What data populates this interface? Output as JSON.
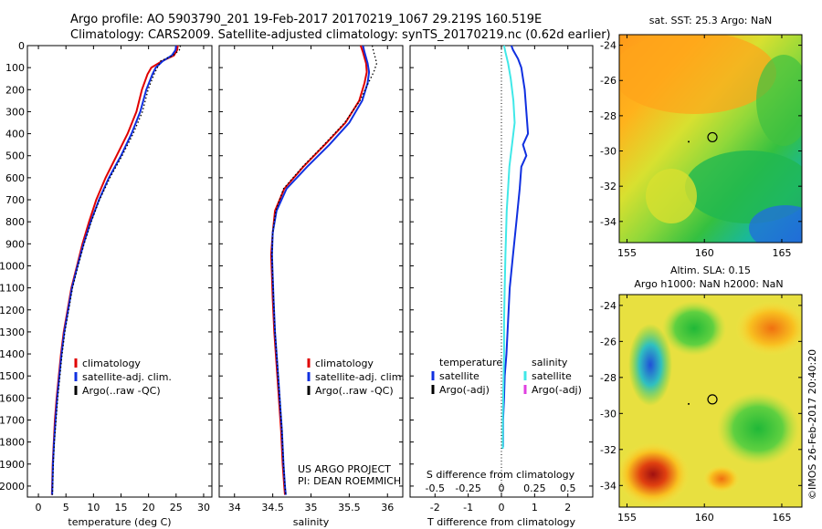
{
  "header": {
    "line1": "Argo profile: AO 5903790_201 19-Feb-2017 20170219_1067 29.219S 160.519E",
    "line2": "Climatology: CARS2009. Satellite-adjusted climatology: synTS_20170219.nc (0.62d earlier)"
  },
  "colors": {
    "clim": "#e00000",
    "sat": "#1030e0",
    "argo": "#000000",
    "sat_s": "#40e8e8",
    "argo_s": "#e040e0"
  },
  "depth_axis": {
    "ylim": [
      0,
      2050
    ],
    "ticks": [
      0,
      100,
      200,
      300,
      400,
      500,
      600,
      700,
      800,
      900,
      1000,
      1100,
      1200,
      1300,
      1400,
      1500,
      1600,
      1700,
      1800,
      1900,
      2000
    ]
  },
  "chart_data": [
    {
      "id": "temperature",
      "type": "line",
      "xlabel": "temperature (deg C)",
      "xlim": [
        -2,
        31.5
      ],
      "xticks": [
        0,
        5,
        10,
        15,
        20,
        25,
        30
      ],
      "legend": [
        "climatology",
        "satellite-adj. clim.",
        "Argo(..raw -QC)"
      ],
      "series": [
        {
          "name": "climatology",
          "color": "clim",
          "style": "solid",
          "x": [
            25.3,
            25.2,
            24.6,
            22.5,
            20.5,
            19.8,
            18.8,
            17.8,
            16.2,
            14.2,
            12.2,
            10.5,
            9.2,
            8.0,
            7.0,
            6.0,
            5.3,
            4.6,
            4.1,
            3.7,
            3.3,
            3.0,
            2.8,
            2.6,
            2.5,
            2.45
          ],
          "depth": [
            0,
            20,
            45,
            70,
            100,
            130,
            200,
            300,
            400,
            500,
            600,
            700,
            800,
            900,
            1000,
            1100,
            1200,
            1300,
            1400,
            1500,
            1600,
            1700,
            1800,
            1900,
            2000,
            2040
          ]
        },
        {
          "name": "satellite-adj. clim.",
          "color": "sat",
          "style": "solid",
          "x": [
            25.0,
            24.9,
            24.2,
            22.6,
            21.3,
            20.7,
            19.6,
            18.5,
            16.9,
            15.0,
            12.8,
            11.0,
            9.5,
            8.2,
            7.1,
            6.1,
            5.4,
            4.7,
            4.2,
            3.8,
            3.4,
            3.1,
            2.85,
            2.65,
            2.55,
            2.5
          ],
          "depth": [
            0,
            20,
            45,
            70,
            100,
            130,
            200,
            300,
            400,
            500,
            600,
            700,
            800,
            900,
            1000,
            1100,
            1200,
            1300,
            1400,
            1500,
            1600,
            1700,
            1800,
            1900,
            2000,
            2040
          ]
        },
        {
          "name": "Argo(..raw -QC)",
          "color": "argo",
          "style": "dotted",
          "x": [
            25.8,
            25.6,
            24.4,
            22.2,
            21.6,
            21.0,
            19.9,
            18.9,
            17.2,
            15.2,
            13.0,
            11.1,
            9.6,
            8.3,
            7.2,
            6.2,
            5.5,
            4.8,
            4.3,
            3.9,
            3.5,
            3.2,
            2.9,
            2.7,
            2.6,
            2.55
          ],
          "depth": [
            0,
            20,
            45,
            70,
            100,
            130,
            200,
            300,
            400,
            500,
            600,
            700,
            800,
            900,
            1000,
            1100,
            1200,
            1300,
            1400,
            1500,
            1600,
            1700,
            1800,
            1900,
            2000,
            2040
          ]
        }
      ]
    },
    {
      "id": "salinity",
      "type": "line",
      "xlabel": "salinity",
      "xlim": [
        33.8,
        36.2
      ],
      "xticks": [
        34,
        34.5,
        35,
        35.5,
        36
      ],
      "xticklabels": [
        "34",
        "34.5",
        "35",
        "35.5",
        "36"
      ],
      "legend": [
        "climatology",
        "satellite-adj. clim.",
        "Argo(..raw -QC)"
      ],
      "annotation": [
        "US ARGO PROJECT",
        "PI: DEAN ROEMMICH"
      ],
      "series": [
        {
          "name": "climatology",
          "color": "clim",
          "style": "solid",
          "x": [
            35.65,
            35.68,
            35.72,
            35.73,
            35.7,
            35.63,
            35.45,
            35.18,
            34.9,
            34.65,
            34.53,
            34.5,
            34.48,
            34.49,
            34.5,
            34.52,
            34.55,
            34.58,
            34.61,
            34.63,
            34.65,
            34.66
          ],
          "depth": [
            0,
            30,
            80,
            120,
            170,
            250,
            350,
            450,
            550,
            650,
            750,
            850,
            950,
            1050,
            1150,
            1300,
            1450,
            1600,
            1750,
            1900,
            2000,
            2040
          ]
        },
        {
          "name": "satellite-adj. clim.",
          "color": "sat",
          "style": "solid",
          "x": [
            35.68,
            35.7,
            35.74,
            35.76,
            35.74,
            35.67,
            35.5,
            35.24,
            34.95,
            34.68,
            34.55,
            34.5,
            34.49,
            34.5,
            34.51,
            34.53,
            34.56,
            34.59,
            34.62,
            34.64,
            34.66,
            34.67
          ],
          "depth": [
            0,
            30,
            80,
            120,
            170,
            250,
            350,
            450,
            550,
            650,
            750,
            850,
            950,
            1050,
            1150,
            1300,
            1450,
            1600,
            1750,
            1900,
            2000,
            2040
          ]
        },
        {
          "name": "Argo(..raw -QC)",
          "color": "argo",
          "style": "dotted",
          "x": [
            35.8,
            35.82,
            35.86,
            35.82,
            35.75,
            35.64,
            35.44,
            35.17,
            34.89,
            34.64,
            34.54,
            34.5,
            34.49,
            34.5,
            34.51,
            34.53,
            34.56,
            34.59,
            34.62,
            34.64,
            34.66,
            34.67
          ],
          "depth": [
            0,
            30,
            80,
            120,
            170,
            250,
            350,
            450,
            550,
            650,
            750,
            850,
            950,
            1050,
            1150,
            1300,
            1450,
            1600,
            1750,
            1900,
            2000,
            2040
          ]
        }
      ]
    },
    {
      "id": "difference",
      "type": "line",
      "xlabel": "T difference from climatology",
      "xlabel_top": "S difference from climatology",
      "xlim": [
        -2.75,
        2.75
      ],
      "xticks": [
        -2,
        -1,
        0,
        1,
        2
      ],
      "top_ticks": [
        -0.5,
        -0.25,
        0,
        0.25,
        0.5
      ],
      "top_ticklabels": [
        "-0.5",
        "-0.25",
        "0",
        "0.25",
        "0.5"
      ],
      "legend_temperature": [
        "temperature",
        "satellite",
        "Argo(-adj)"
      ],
      "legend_salinity": [
        "salinity",
        "satellite",
        "Argo(-adj)"
      ],
      "series": [
        {
          "name": "T satellite",
          "color": "sat",
          "style": "solid",
          "x": [
            0.3,
            0.35,
            0.5,
            0.6,
            0.7,
            0.75,
            0.8,
            0.65,
            0.75,
            0.6,
            0.55,
            0.45,
            0.35,
            0.25,
            0.2,
            0.15,
            0.1,
            0.08,
            0.05,
            0.05,
            0.05,
            0.05,
            0.03
          ],
          "depth": [
            0,
            20,
            60,
            100,
            200,
            300,
            400,
            450,
            500,
            550,
            650,
            800,
            950,
            1100,
            1250,
            1400,
            1500,
            1600,
            1700,
            1750,
            1800,
            1820,
            1830
          ]
        },
        {
          "name": "S satellite",
          "color": "sat_s",
          "style": "solid",
          "x": [
            0.02,
            0.03,
            0.05,
            0.07,
            0.09,
            0.1,
            0.08,
            0.06,
            0.05,
            0.04,
            0.035,
            0.03,
            0.025,
            0.02,
            0.02,
            0.015,
            0.01,
            0.01,
            0.01
          ],
          "depth": [
            0,
            30,
            80,
            150,
            250,
            350,
            450,
            550,
            650,
            750,
            850,
            950,
            1100,
            1250,
            1400,
            1550,
            1700,
            1800,
            1830
          ]
        },
        {
          "name": "zero",
          "color": "argo",
          "style": "dotted",
          "x": [
            0,
            0
          ],
          "depth": [
            0,
            2050
          ]
        }
      ]
    },
    {
      "id": "sst_map",
      "type": "heatmap",
      "title": "sat. SST: 25.3  Argo: NaN",
      "xlim": [
        154.5,
        166.3
      ],
      "ylim": [
        -35.2,
        -23.4
      ],
      "xticks": [
        155,
        160,
        165
      ],
      "yticks": [
        -24,
        -26,
        -28,
        -30,
        -32,
        -34
      ],
      "marker": [
        160.519,
        -29.219
      ]
    },
    {
      "id": "sla_map",
      "type": "heatmap",
      "title": "Altim. SLA: 0.15",
      "subtitle": "Argo h1000: NaN h2000: NaN",
      "xlim": [
        154.5,
        166.3
      ],
      "ylim": [
        -35.2,
        -23.4
      ],
      "xticks": [
        155,
        160,
        165
      ],
      "yticks": [
        -24,
        -26,
        -28,
        -30,
        -32,
        -34
      ],
      "marker": [
        160.519,
        -29.219
      ]
    }
  ],
  "side_stamp": "©IMOS 26-Feb-2017 20:40:20"
}
